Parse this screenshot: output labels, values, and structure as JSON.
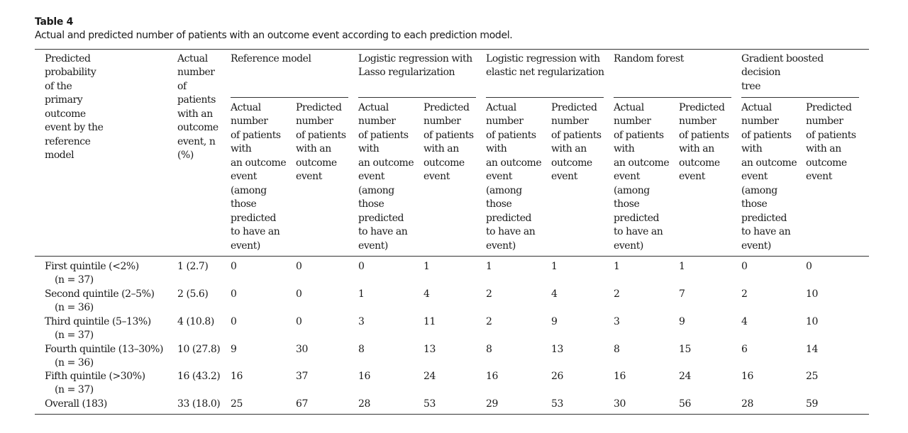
{
  "table": {
    "label": "Table 4",
    "caption": "Actual and predicted number of patients with an outcome event according to each prediction model.",
    "col_predicted_probability": "Predicted\nprobability\nof the\nprimary\noutcome\nevent by the\nreference\nmodel",
    "col_actual_total": "Actual\nnumber\nof\npatients\nwith an\noutcome\nevent, n\n(%)",
    "models": [
      "Reference model",
      "Logistic regression with\nLasso regularization",
      "Logistic regression with\nelastic net regularization",
      "Random forest",
      "Gradient boosted\ndecision\ntree"
    ],
    "sub_actual": "Actual\nnumber\nof patients\nwith\nan outcome\nevent\n(among\nthose\npredicted\nto have an\nevent)",
    "sub_predicted": "Predicted\nnumber\nof patients\nwith an\noutcome\nevent",
    "rows": [
      {
        "label": "First quintile (<2%)",
        "n": "(n = 37)",
        "actual": "1 (2.7)",
        "values": [
          "0",
          "0",
          "0",
          "1",
          "1",
          "1",
          "1",
          "1",
          "0",
          "0"
        ]
      },
      {
        "label": "Second quintile (2–5%)",
        "n": "(n = 36)",
        "actual": "2 (5.6)",
        "values": [
          "0",
          "0",
          "1",
          "4",
          "2",
          "4",
          "2",
          "7",
          "2",
          "10"
        ]
      },
      {
        "label": "Third quintile (5–13%)",
        "n": "(n = 37)",
        "actual": "4 (10.8)",
        "values": [
          "0",
          "0",
          "3",
          "11",
          "2",
          "9",
          "3",
          "9",
          "4",
          "10"
        ]
      },
      {
        "label": "Fourth quintile (13–30%)",
        "n": "(n = 36)",
        "actual": "10 (27.8)",
        "values": [
          "9",
          "30",
          "8",
          "13",
          "8",
          "13",
          "8",
          "15",
          "6",
          "14"
        ]
      },
      {
        "label": "Fifth quintile (>30%)",
        "n": "(n = 37)",
        "actual": "16 (43.2)",
        "values": [
          "16",
          "37",
          "16",
          "24",
          "16",
          "26",
          "16",
          "24",
          "16",
          "25"
        ]
      },
      {
        "label": "Overall (183)",
        "n": "",
        "actual": "33 (18.0)",
        "values": [
          "25",
          "67",
          "28",
          "53",
          "29",
          "53",
          "30",
          "56",
          "28",
          "59"
        ]
      }
    ]
  }
}
